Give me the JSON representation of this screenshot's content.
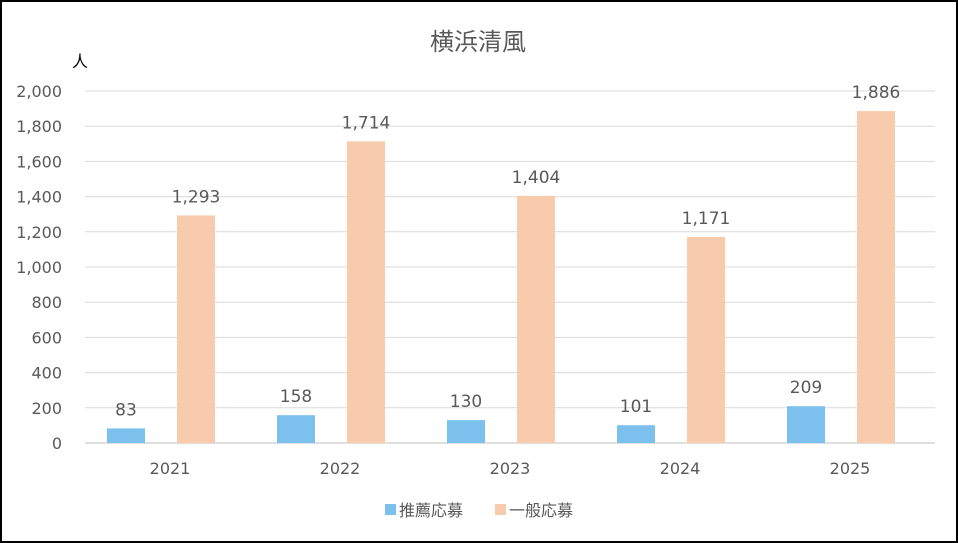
{
  "chart_data": {
    "type": "bar",
    "title": "横浜清風",
    "ylabel": "人",
    "xlabel": "",
    "categories": [
      "2021",
      "2022",
      "2023",
      "2024",
      "2025"
    ],
    "series": [
      {
        "name": "推薦応募",
        "values": [
          83,
          158,
          130,
          101,
          209
        ],
        "color": "#7CC0EE"
      },
      {
        "name": "一般応募",
        "values": [
          1293,
          1714,
          1404,
          1171,
          1886
        ],
        "color": "#F8CBAD"
      }
    ],
    "ylim": [
      0,
      2000
    ],
    "yticks": [
      "0",
      "200",
      "400",
      "600",
      "800",
      "1,000",
      "1,200",
      "1,400",
      "1,600",
      "1,800",
      "2,000"
    ],
    "grid": true,
    "legend": "bottom",
    "data_labels": true
  }
}
